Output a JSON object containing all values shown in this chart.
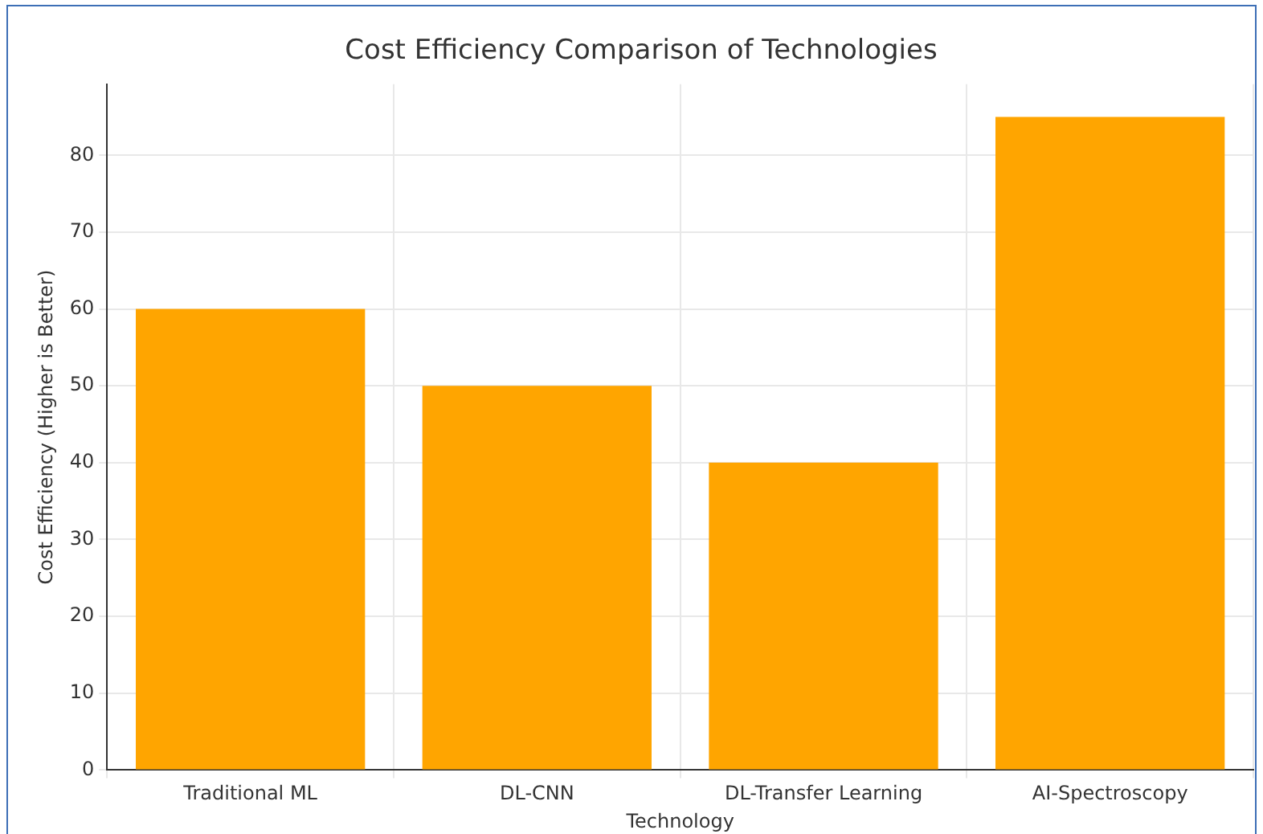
{
  "chart_data": {
    "type": "bar",
    "title": "Cost Efficiency Comparison of Technologies",
    "xlabel": "Technology",
    "ylabel": "Cost Efficiency (Higher is Better)",
    "categories": [
      "Traditional ML",
      "DL-CNN",
      "DL-Transfer Learning",
      "AI-Spectroscopy"
    ],
    "values": [
      60,
      50,
      40,
      85
    ],
    "color": "#ffa500",
    "ylim": [
      0,
      89.25
    ],
    "yticks": [
      0,
      10,
      20,
      30,
      40,
      50,
      60,
      70,
      80
    ],
    "grid": true
  }
}
